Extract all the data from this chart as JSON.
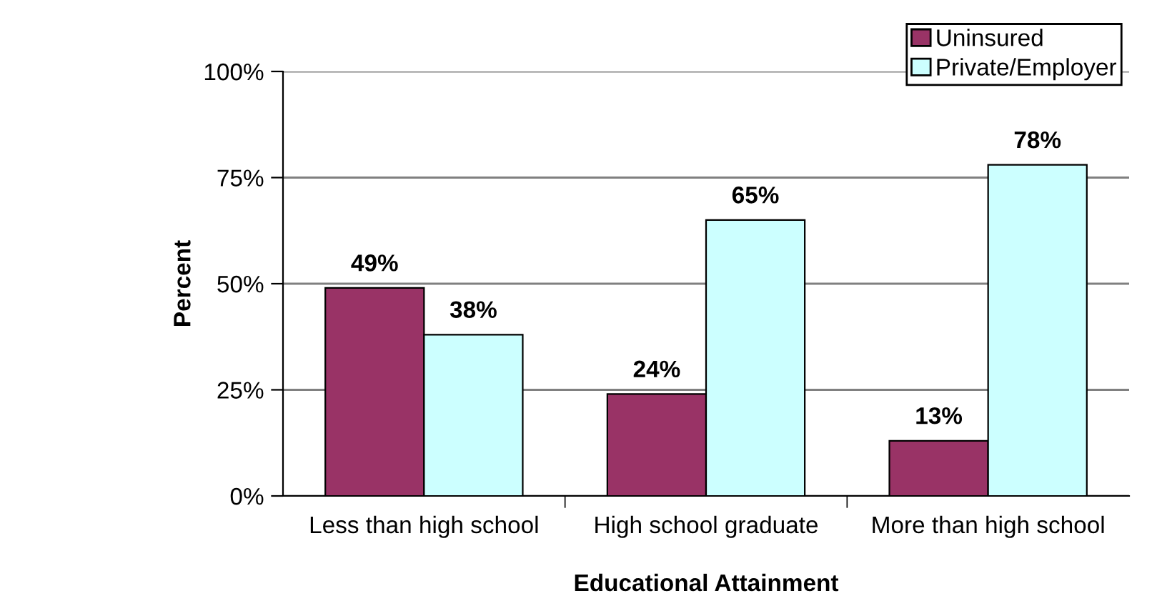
{
  "chart_data": {
    "type": "bar",
    "xlabel": "Educational Attainment",
    "ylabel": "Percent",
    "categories": [
      "Less than high school",
      "High school graduate",
      "More than high school"
    ],
    "series": [
      {
        "name": "Uninsured",
        "color": "#993366",
        "values": [
          49,
          24,
          13
        ],
        "value_labels": [
          "49%",
          "24%",
          "13%"
        ]
      },
      {
        "name": "Private/Employer",
        "color": "#ccffff",
        "values": [
          38,
          65,
          78
        ],
        "value_labels": [
          "38%",
          "65%",
          "78%"
        ]
      }
    ],
    "ylim": [
      0,
      100
    ],
    "yticks": [
      {
        "value": 0,
        "label": "0%"
      },
      {
        "value": 25,
        "label": "25%"
      },
      {
        "value": 50,
        "label": "50%"
      },
      {
        "value": 75,
        "label": "75%"
      },
      {
        "value": 100,
        "label": "100%"
      }
    ],
    "grid": "y",
    "legend": "top right"
  }
}
